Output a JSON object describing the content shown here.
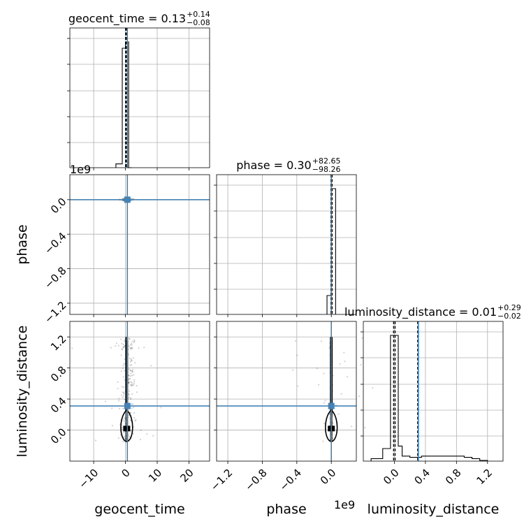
{
  "chart_data": {
    "type": "corner",
    "colors": {
      "truth": "#4682b4",
      "hist": "#000000",
      "grid": "#b0b0b0",
      "points": "#000000"
    },
    "parameters": [
      {
        "name": "geocent_time",
        "label": "geocent_time",
        "title": "geocent_time = 0.13",
        "title_sup": "+0.14",
        "title_sub": "−0.08",
        "range": [
          -17.5,
          26.5
        ],
        "ticks": [
          -10,
          0,
          10,
          20
        ],
        "tick_labels": [
          "−10",
          "0",
          "10",
          "20"
        ],
        "truth": 0.6,
        "quantiles": [
          0.05,
          0.13,
          0.27
        ],
        "hist": {
          "edges": [
            -3,
            -1,
            0,
            1,
            2
          ],
          "counts": [
            0.03,
            0.95,
            1.0,
            0
          ]
        }
      },
      {
        "name": "phase",
        "label": "phase",
        "title": "phase = 0.30",
        "title_sup": "+82.65",
        "title_sub": "−98.26",
        "offset_text": "1e9",
        "range": [
          -1.33,
          0.29
        ],
        "ticks": [
          -1.2,
          -0.8,
          -0.4,
          0.0
        ],
        "tick_labels": [
          "−1.2",
          "−0.8",
          "−0.4",
          "0.0"
        ],
        "truth": 0.0,
        "quantiles": [
          -0.005,
          0.0,
          0.01
        ],
        "hist": {
          "edges": [
            -0.05,
            0.0,
            0.05
          ],
          "counts": [
            0.15,
            1.0
          ]
        }
      },
      {
        "name": "luminosity_distance",
        "label": "luminosity_distance",
        "title": "luminosity_distance = 0.01",
        "title_sup": "+0.29",
        "title_sub": "−0.02",
        "range": [
          -0.4,
          1.4
        ],
        "ticks": [
          0.0,
          0.4,
          0.8,
          1.2
        ],
        "tick_labels": [
          "0.0",
          "0.4",
          "0.8",
          "1.2"
        ],
        "truth": 0.31,
        "quantiles": [
          -0.01,
          0.01,
          0.3
        ],
        "hist": {
          "edges": [
            -0.3,
            -0.15,
            -0.05,
            0.0,
            0.05,
            0.1,
            0.2,
            0.35,
            0.5,
            0.65,
            0.8,
            0.9,
            1.0,
            1.1,
            1.2
          ],
          "counts": [
            0.02,
            0.1,
            1.0,
            1.0,
            0.12,
            0.04,
            0.03,
            0.04,
            0.04,
            0.04,
            0.04,
            0.03,
            0.02,
            0.005
          ]
        }
      }
    ],
    "panels_2d": [
      {
        "x": "geocent_time",
        "y": "phase",
        "truth": [
          0.6,
          0.0
        ]
      },
      {
        "x": "geocent_time",
        "y": "luminosity_distance",
        "truth": [
          0.6,
          0.31
        ]
      },
      {
        "x": "phase",
        "y": "luminosity_distance",
        "truth": [
          0.0,
          0.31
        ]
      }
    ],
    "grid": true
  }
}
